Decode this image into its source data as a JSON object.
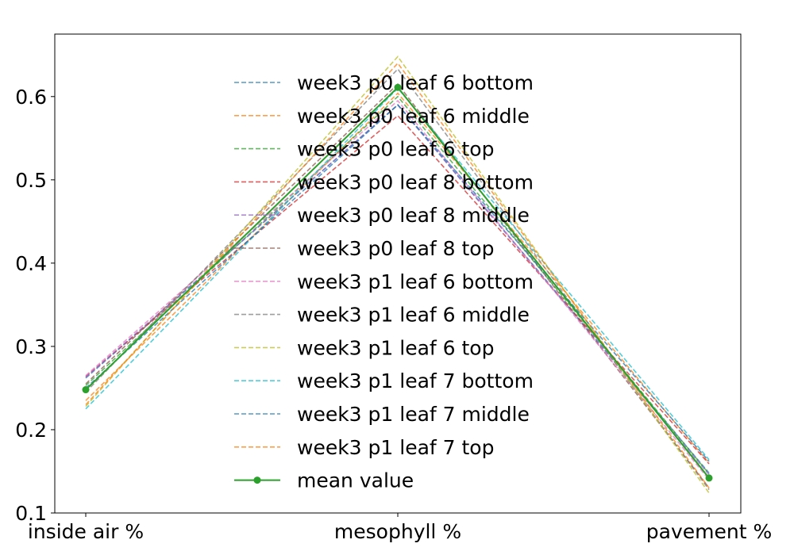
{
  "chart_data": {
    "type": "line",
    "categories": [
      "inside air %",
      "mesophyll %",
      "pavement %"
    ],
    "ylim": [
      0.1,
      0.675
    ],
    "yticks": [
      0.1,
      0.2,
      0.3,
      0.4,
      0.5,
      0.6
    ],
    "ytick_labels": [
      "0.1",
      "0.2",
      "0.3",
      "0.4",
      "0.5",
      "0.6"
    ],
    "grid": false,
    "legend_position": "upper-center",
    "series": [
      {
        "name": "week3 p0 leaf 6 bottom",
        "values": [
          0.262,
          0.59,
          0.148
        ],
        "color": "#1f77b4",
        "style": "dashed"
      },
      {
        "name": "week3 p0 leaf 6 middle",
        "values": [
          0.235,
          0.604,
          0.16
        ],
        "color": "#ff7f0e",
        "style": "dashed"
      },
      {
        "name": "week3 p0 leaf 6 top",
        "values": [
          0.253,
          0.6,
          0.147
        ],
        "color": "#2ca02c",
        "style": "dashed"
      },
      {
        "name": "week3 p0 leaf 8 bottom",
        "values": [
          0.264,
          0.577,
          0.159
        ],
        "color": "#d62728",
        "style": "dashed"
      },
      {
        "name": "week3 p0 leaf 8 middle",
        "values": [
          0.263,
          0.59,
          0.146
        ],
        "color": "#9467bd",
        "style": "dashed"
      },
      {
        "name": "week3 p0 leaf 8 top",
        "values": [
          0.255,
          0.615,
          0.13
        ],
        "color": "#8c564b",
        "style": "dashed"
      },
      {
        "name": "week3 p1 leaf 6 bottom",
        "values": [
          0.265,
          0.595,
          0.14
        ],
        "color": "#e377c2",
        "style": "dashed"
      },
      {
        "name": "week3 p1 leaf 6 middle",
        "values": [
          0.245,
          0.633,
          0.128
        ],
        "color": "#7f7f7f",
        "style": "dashed"
      },
      {
        "name": "week3 p1 leaf 6 top",
        "values": [
          0.228,
          0.648,
          0.124
        ],
        "color": "#bcbd22",
        "style": "dashed"
      },
      {
        "name": "week3 p1 leaf 7 bottom",
        "values": [
          0.225,
          0.61,
          0.164
        ],
        "color": "#17becf",
        "style": "dashed"
      },
      {
        "name": "week3 p1 leaf 7 middle",
        "values": [
          0.25,
          0.59,
          0.162
        ],
        "color": "#1f77b4",
        "style": "dashed"
      },
      {
        "name": "week3 p1 leaf 7 top",
        "values": [
          0.23,
          0.64,
          0.13
        ],
        "color": "#ff7f0e",
        "style": "dashed"
      },
      {
        "name": "mean value",
        "values": [
          0.248,
          0.611,
          0.142
        ],
        "color": "#2ca02c",
        "style": "solid-marker"
      }
    ]
  }
}
